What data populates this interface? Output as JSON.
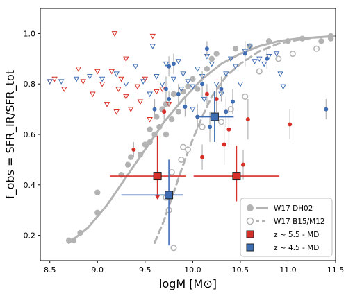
{
  "chart_data": {
    "type": "scatter",
    "xlabel": "logM [M⊙]",
    "ylabel": "f_obs = SFR_IR/SFR_tot",
    "xlim": [
      8.4,
      11.5
    ],
    "ylim": [
      0.1,
      1.1
    ],
    "xticks": [
      8.5,
      9.0,
      9.5,
      10.0,
      10.5,
      11.0,
      11.5
    ],
    "yticks": [
      0.2,
      0.4,
      0.6,
      0.8,
      1.0
    ],
    "xtick_labels": [
      "8.5",
      "9.0",
      "9.5",
      "10.0",
      "10.5",
      "11.0",
      "11.5"
    ],
    "ytick_labels": [
      "0.2",
      "0.4",
      "0.6",
      "0.8",
      "1.0"
    ],
    "legend_position": "bottom-right",
    "colors": {
      "red": "#d62f27",
      "blue": "#3e6db3",
      "grey": "#b3b3b3"
    },
    "legend": [
      {
        "label": "W17 DH02",
        "marker": "filled-circle-solid-line"
      },
      {
        "label": "W17 B15/M12",
        "marker": "open-circle-dashed-line"
      },
      {
        "label": "z ~ 5.5 - MD",
        "marker": "red-square"
      },
      {
        "label": "z ~ 4.5 - MD",
        "marker": "blue-square"
      }
    ],
    "curves": [
      {
        "name": "W17 DH02",
        "style": "solid",
        "x": [
          8.7,
          8.9,
          9.1,
          9.3,
          9.5,
          9.7,
          9.9,
          10.1,
          10.3,
          10.5,
          10.7,
          10.9,
          11.1,
          11.3,
          11.5
        ],
        "y": [
          0.17,
          0.23,
          0.32,
          0.43,
          0.54,
          0.65,
          0.74,
          0.82,
          0.88,
          0.92,
          0.95,
          0.97,
          0.98,
          0.985,
          0.99
        ]
      },
      {
        "name": "W17 B15/M12",
        "style": "dashed",
        "x": [
          9.6,
          9.7,
          9.8,
          9.9,
          10.0,
          10.1,
          10.2,
          10.35,
          10.5,
          10.7,
          10.9,
          11.1,
          11.3,
          11.5
        ],
        "y": [
          0.17,
          0.26,
          0.37,
          0.48,
          0.58,
          0.67,
          0.75,
          0.83,
          0.88,
          0.93,
          0.96,
          0.975,
          0.985,
          0.99
        ]
      }
    ],
    "grey_filled_points": [
      {
        "x": 8.7,
        "y": 0.18
      },
      {
        "x": 8.75,
        "y": 0.18
      },
      {
        "x": 8.82,
        "y": 0.21
      },
      {
        "x": 9.0,
        "y": 0.29
      },
      {
        "x": 9.0,
        "y": 0.37
      },
      {
        "x": 9.25,
        "y": 0.44
      },
      {
        "x": 9.32,
        "y": 0.48
      },
      {
        "x": 9.35,
        "y": 0.51
      },
      {
        "x": 9.45,
        "y": 0.52
      },
      {
        "x": 9.5,
        "y": 0.56
      },
      {
        "x": 9.55,
        "y": 0.57
      },
      {
        "x": 9.55,
        "y": 0.62
      },
      {
        "x": 9.6,
        "y": 0.6
      },
      {
        "x": 9.62,
        "y": 0.67
      },
      {
        "x": 9.65,
        "y": 0.63
      },
      {
        "x": 9.68,
        "y": 0.7
      },
      {
        "x": 9.72,
        "y": 0.6
      },
      {
        "x": 9.72,
        "y": 0.72
      },
      {
        "x": 9.78,
        "y": 0.66
      },
      {
        "x": 9.8,
        "y": 0.76
      },
      {
        "x": 9.85,
        "y": 0.69
      },
      {
        "x": 9.9,
        "y": 0.77
      },
      {
        "x": 9.95,
        "y": 0.79
      },
      {
        "x": 10.0,
        "y": 0.82
      },
      {
        "x": 10.05,
        "y": 0.78
      },
      {
        "x": 10.15,
        "y": 0.86
      },
      {
        "x": 10.2,
        "y": 0.9
      },
      {
        "x": 10.25,
        "y": 0.92
      },
      {
        "x": 10.45,
        "y": 0.94
      },
      {
        "x": 10.6,
        "y": 0.95
      },
      {
        "x": 10.8,
        "y": 0.97
      },
      {
        "x": 11.0,
        "y": 0.97
      },
      {
        "x": 11.15,
        "y": 0.98
      },
      {
        "x": 11.35,
        "y": 0.97
      },
      {
        "x": 11.45,
        "y": 0.98
      },
      {
        "x": 11.45,
        "y": 0.99
      }
    ],
    "grey_open_points": [
      {
        "x": 9.72,
        "y": 0.35
      },
      {
        "x": 9.75,
        "y": 0.3
      },
      {
        "x": 9.78,
        "y": 0.45
      },
      {
        "x": 9.8,
        "y": 0.15
      },
      {
        "x": 9.88,
        "y": 0.5
      },
      {
        "x": 9.9,
        "y": 0.55
      },
      {
        "x": 9.95,
        "y": 0.54
      },
      {
        "x": 10.1,
        "y": 0.63
      },
      {
        "x": 10.3,
        "y": 0.65
      },
      {
        "x": 10.4,
        "y": 0.7
      },
      {
        "x": 10.55,
        "y": 0.75
      },
      {
        "x": 10.7,
        "y": 0.85
      },
      {
        "x": 10.9,
        "y": 0.9
      },
      {
        "x": 11.05,
        "y": 0.92
      },
      {
        "x": 11.3,
        "y": 0.94
      }
    ],
    "red_upper_limits": [
      {
        "x": 8.5,
        "y": 0.81
      },
      {
        "x": 8.55,
        "y": 0.82
      },
      {
        "x": 8.65,
        "y": 0.78
      },
      {
        "x": 8.8,
        "y": 0.86
      },
      {
        "x": 8.85,
        "y": 0.81
      },
      {
        "x": 8.95,
        "y": 0.76
      },
      {
        "x": 9.0,
        "y": 0.85
      },
      {
        "x": 9.05,
        "y": 0.8
      },
      {
        "x": 9.1,
        "y": 0.72
      },
      {
        "x": 9.15,
        "y": 0.85
      },
      {
        "x": 9.2,
        "y": 0.69
      },
      {
        "x": 9.22,
        "y": 0.78
      },
      {
        "x": 9.25,
        "y": 0.82
      },
      {
        "x": 9.3,
        "y": 0.75
      },
      {
        "x": 9.35,
        "y": 0.7
      },
      {
        "x": 9.42,
        "y": 0.79
      },
      {
        "x": 9.45,
        "y": 0.73
      },
      {
        "x": 9.5,
        "y": 0.82
      },
      {
        "x": 9.55,
        "y": 0.66
      },
      {
        "x": 9.62,
        "y": 0.77
      },
      {
        "x": 9.18,
        "y": 1.0
      },
      {
        "x": 9.3,
        "y": 0.9
      },
      {
        "x": 9.58,
        "y": 0.99
      },
      {
        "x": 9.68,
        "y": 0.78
      },
      {
        "x": 9.75,
        "y": 0.72
      }
    ],
    "blue_upper_limits": [
      {
        "x": 8.5,
        "y": 0.81
      },
      {
        "x": 8.62,
        "y": 0.81
      },
      {
        "x": 8.78,
        "y": 0.82
      },
      {
        "x": 8.92,
        "y": 0.83
      },
      {
        "x": 9.05,
        "y": 0.82
      },
      {
        "x": 9.2,
        "y": 0.84
      },
      {
        "x": 9.3,
        "y": 0.8
      },
      {
        "x": 9.4,
        "y": 0.87
      },
      {
        "x": 9.48,
        "y": 0.81
      },
      {
        "x": 9.55,
        "y": 0.76
      },
      {
        "x": 9.62,
        "y": 0.83
      },
      {
        "x": 9.68,
        "y": 0.8
      },
      {
        "x": 9.72,
        "y": 0.88
      },
      {
        "x": 9.8,
        "y": 0.82
      },
      {
        "x": 9.85,
        "y": 0.89
      },
      {
        "x": 9.9,
        "y": 0.84
      },
      {
        "x": 9.95,
        "y": 0.81
      },
      {
        "x": 10.0,
        "y": 0.79
      },
      {
        "x": 10.05,
        "y": 0.86
      },
      {
        "x": 10.1,
        "y": 0.83
      },
      {
        "x": 10.15,
        "y": 0.91
      },
      {
        "x": 10.2,
        "y": 0.88
      },
      {
        "x": 10.25,
        "y": 0.8
      },
      {
        "x": 10.3,
        "y": 0.76
      },
      {
        "x": 10.35,
        "y": 0.84
      },
      {
        "x": 10.4,
        "y": 0.9
      },
      {
        "x": 10.45,
        "y": 0.87
      },
      {
        "x": 10.5,
        "y": 0.8
      },
      {
        "x": 10.55,
        "y": 0.93
      },
      {
        "x": 10.6,
        "y": 0.95
      },
      {
        "x": 10.65,
        "y": 0.89
      },
      {
        "x": 10.7,
        "y": 0.9
      },
      {
        "x": 10.75,
        "y": 0.88
      },
      {
        "x": 10.8,
        "y": 0.91
      },
      {
        "x": 10.88,
        "y": 0.92
      },
      {
        "x": 10.92,
        "y": 0.84
      },
      {
        "x": 10.95,
        "y": 0.79
      },
      {
        "x": 9.58,
        "y": 0.95
      },
      {
        "x": 9.88,
        "y": 0.78
      },
      {
        "x": 10.0,
        "y": 0.7
      },
      {
        "x": 10.12,
        "y": 0.74
      }
    ],
    "red_detections": [
      {
        "x": 9.38,
        "y": 0.54,
        "yerr": 0.03
      },
      {
        "x": 10.1,
        "y": 0.51,
        "yerr": 0.05
      },
      {
        "x": 10.15,
        "y": 0.76,
        "yerr": 0.04
      },
      {
        "x": 10.25,
        "y": 0.74,
        "yerr": 0.05
      },
      {
        "x": 10.33,
        "y": 0.56,
        "yerr": 0.08
      },
      {
        "x": 10.38,
        "y": 0.62,
        "yerr": 0.07
      },
      {
        "x": 10.53,
        "y": 0.48,
        "yerr": 0.06
      },
      {
        "x": 10.58,
        "y": 0.66,
        "yerr": 0.08
      },
      {
        "x": 11.02,
        "y": 0.64,
        "yerr": 0.06
      },
      {
        "x": 9.7,
        "y": 0.69,
        "yerr": 0.04
      }
    ],
    "blue_detections": [
      {
        "x": 9.6,
        "y": 0.7,
        "yerr": 0.04
      },
      {
        "x": 9.72,
        "y": 0.78,
        "yerr": 0.05
      },
      {
        "x": 9.75,
        "y": 0.87,
        "yerr": 0.04
      },
      {
        "x": 9.75,
        "y": 0.74,
        "yerr": 0.03
      },
      {
        "x": 9.8,
        "y": 0.88,
        "yerr": 0.04
      },
      {
        "x": 9.85,
        "y": 0.76,
        "yerr": 0.04
      },
      {
        "x": 9.92,
        "y": 0.71,
        "yerr": 0.04
      },
      {
        "x": 10.05,
        "y": 0.67,
        "yerr": 0.05
      },
      {
        "x": 10.1,
        "y": 0.8,
        "yerr": 0.05
      },
      {
        "x": 10.18,
        "y": 0.63,
        "yerr": 0.06
      },
      {
        "x": 10.3,
        "y": 0.78,
        "yerr": 0.05
      },
      {
        "x": 10.35,
        "y": 0.69,
        "yerr": 0.06
      },
      {
        "x": 10.42,
        "y": 0.73,
        "yerr": 0.05
      },
      {
        "x": 10.55,
        "y": 0.92,
        "yerr": 0.05
      },
      {
        "x": 10.78,
        "y": 0.9,
        "yerr": 0.04
      },
      {
        "x": 11.4,
        "y": 0.7,
        "yerr": 0.04
      },
      {
        "x": 10.15,
        "y": 0.94,
        "yerr": 0.03
      }
    ],
    "stacks": [
      {
        "name": "z ~ 5.5 - MD",
        "color": "red",
        "x": 9.63,
        "y": 0.435,
        "xerr": [
          0.5,
          0.3
        ],
        "yerr": [
          0.09,
          0.16
        ],
        "upper_limit": true
      },
      {
        "name": "z ~ 5.5 - MD",
        "color": "red",
        "x": 10.46,
        "y": 0.435,
        "xerr": [
          0.45,
          0.45
        ],
        "yerr": [
          0.1,
          0.12
        ],
        "upper_limit": false
      },
      {
        "name": "z ~ 4.5 - MD",
        "color": "blue",
        "x": 9.75,
        "y": 0.36,
        "xerr": [
          0.5,
          0.15
        ],
        "yerr": [
          0.2,
          0.14
        ],
        "upper_limit": false
      },
      {
        "name": "z ~ 4.5 - MD",
        "color": "blue",
        "x": 10.23,
        "y": 0.67,
        "xerr": [
          0.2,
          0.2
        ],
        "yerr": [
          0.1,
          0.1
        ],
        "upper_limit": false
      }
    ]
  }
}
